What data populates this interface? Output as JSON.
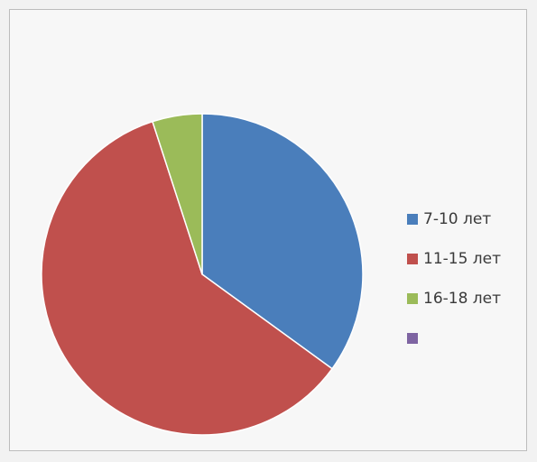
{
  "chart_data": {
    "type": "pie",
    "title": "",
    "categories": [
      "7-10 лет",
      "11-15 лет",
      "16-18 лет",
      ""
    ],
    "values": [
      35,
      60,
      5,
      0
    ],
    "colors": [
      "#4a7ebb",
      "#c0504d",
      "#9bbb59",
      "#7e64a2"
    ],
    "start_angle_deg": 0,
    "direction": "clockwise",
    "legend_position": "right"
  }
}
